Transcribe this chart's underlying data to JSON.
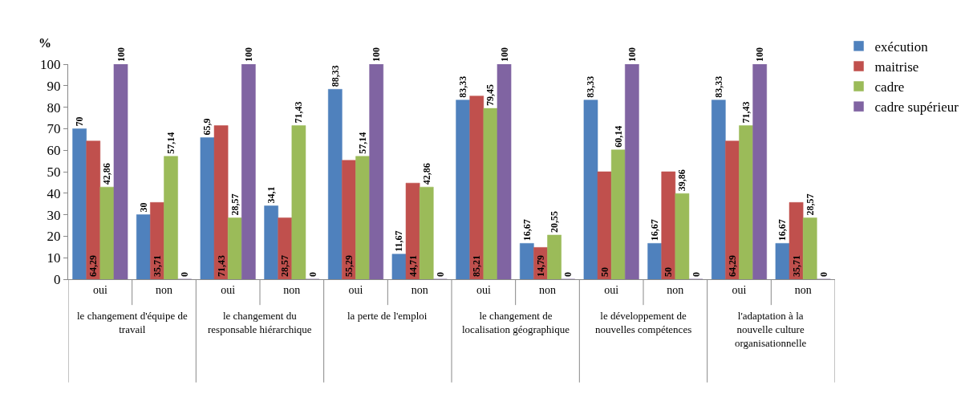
{
  "chart_data": {
    "type": "bar",
    "ylabel": "%",
    "categories": [
      "oui",
      "non",
      "oui",
      "non",
      "oui",
      "non",
      "oui",
      "non",
      "oui",
      "non",
      "oui",
      "non"
    ],
    "annotations": [
      "le changement d'équipe de travail",
      "le changement du responsable hiérarchique",
      "la perte de l'emploi",
      "le changement de localisation géographique",
      "le développement de nouvelles compétences",
      "l'adaptation à la nouvelle culture organisationnelle"
    ],
    "series": [
      {
        "name": "exécution",
        "color": "#4f81bd",
        "values": [
          70,
          30,
          65.9,
          34.1,
          88.33,
          11.67,
          83.33,
          16.67,
          83.33,
          16.67,
          83.33,
          16.67
        ],
        "value_labels": [
          "70",
          "30",
          "65,9",
          "34,1",
          "88,33",
          "11,67",
          "83,33",
          "16,67",
          "83,33",
          "16,67",
          "83,33",
          "16,67"
        ]
      },
      {
        "name": "maitrise",
        "color": "#c0504d",
        "values": [
          64.29,
          35.71,
          71.43,
          28.57,
          55.29,
          44.71,
          85.21,
          14.79,
          50,
          50,
          64.29,
          35.71
        ],
        "value_labels": [
          "64,29",
          "35,71",
          "71,43",
          "28,57",
          "55,29",
          "44,71",
          "85,21",
          "14,79",
          "50",
          "50",
          "64,29",
          "35,71"
        ]
      },
      {
        "name": "cadre",
        "color": "#9bbb59",
        "values": [
          42.86,
          57.14,
          28.57,
          71.43,
          57.14,
          42.86,
          79.45,
          20.55,
          60.14,
          39.86,
          71.43,
          28.57
        ],
        "value_labels": [
          "42,86",
          "57,14",
          "28,57",
          "71,43",
          "57,14",
          "42,86",
          "79,45",
          "20,55",
          "60,14",
          "39,86",
          "71,43",
          "28,57"
        ]
      },
      {
        "name": "cadre supérieur",
        "color": "#8064a2",
        "values": [
          100,
          0,
          100,
          0,
          100,
          0,
          100,
          0,
          100,
          0,
          100,
          0
        ],
        "value_labels": [
          "100",
          "0",
          "100",
          "0",
          "100",
          "0",
          "100",
          "0",
          "100",
          "0",
          "100",
          "0"
        ]
      }
    ],
    "ylim": [
      0,
      100
    ],
    "yticks": [
      0,
      10,
      20,
      30,
      40,
      50,
      60,
      70,
      80,
      90,
      100
    ],
    "grid": false,
    "legend": "right"
  }
}
